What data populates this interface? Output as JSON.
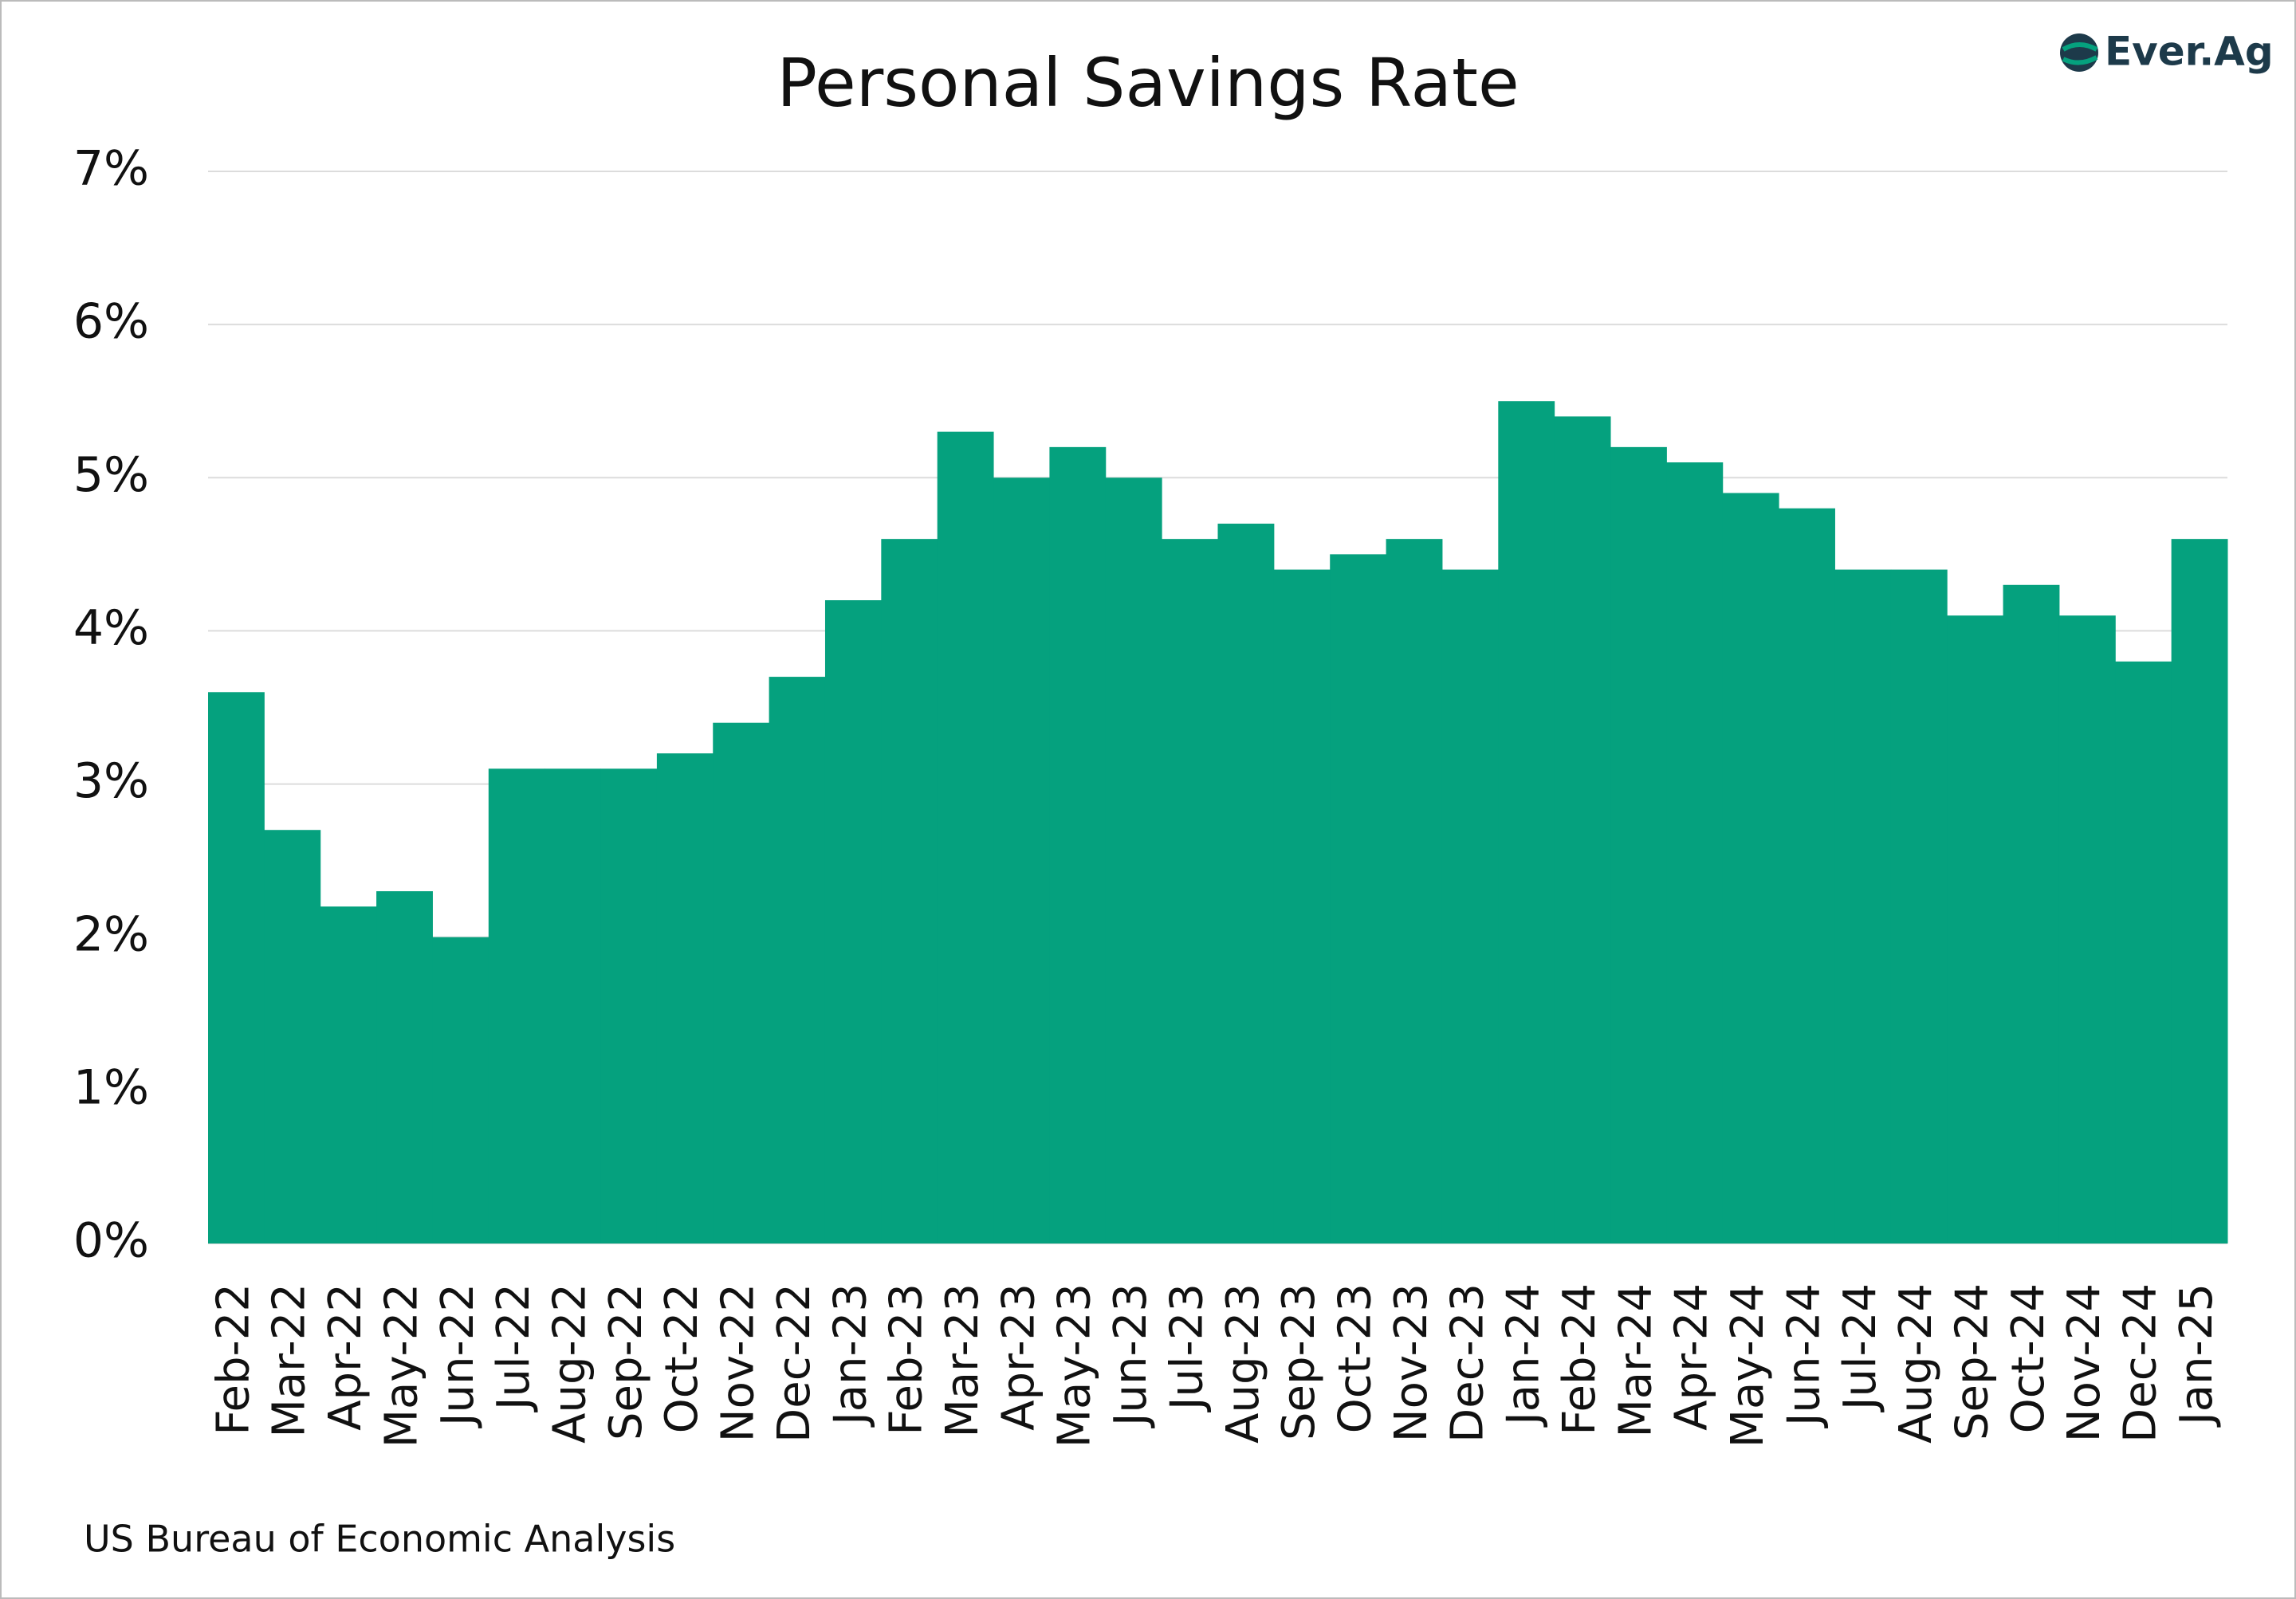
{
  "chart_data": {
    "type": "bar",
    "title": "Personal Savings Rate",
    "source": "US Bureau of Economic Analysis",
    "logo": "Ever.Ag",
    "categories": [
      "Feb-22",
      "Mar-22",
      "Apr-22",
      "May-22",
      "Jun-22",
      "Jul-22",
      "Aug-22",
      "Sep-22",
      "Oct-22",
      "Nov-22",
      "Dec-22",
      "Jan-23",
      "Feb-23",
      "Mar-23",
      "Apr-23",
      "May-23",
      "Jun-23",
      "Jul-23",
      "Aug-23",
      "Sep-23",
      "Oct-23",
      "Nov-23",
      "Dec-23",
      "Jan-24",
      "Feb-24",
      "Mar-24",
      "Apr-24",
      "May-24",
      "Jun-24",
      "Jul-24",
      "Aug-24",
      "Sep-24",
      "Oct-24",
      "Nov-24",
      "Dec-24",
      "Jan-25"
    ],
    "values": [
      3.6,
      2.7,
      2.2,
      2.3,
      2.0,
      3.1,
      3.1,
      3.1,
      3.2,
      3.4,
      3.7,
      4.2,
      4.6,
      5.3,
      5.0,
      5.2,
      5.0,
      4.6,
      4.7,
      4.4,
      4.5,
      4.6,
      4.4,
      5.5,
      5.4,
      5.2,
      5.1,
      4.9,
      4.8,
      4.4,
      4.4,
      4.1,
      4.3,
      4.1,
      3.8,
      4.6
    ],
    "color": "#05a17e",
    "ylim": [
      0,
      7
    ],
    "yticks": [
      {
        "value": 0,
        "label": "0%"
      },
      {
        "value": 1,
        "label": "1%"
      },
      {
        "value": 2,
        "label": "2%"
      },
      {
        "value": 3,
        "label": "3%"
      },
      {
        "value": 4,
        "label": "4%"
      },
      {
        "value": 5,
        "label": "5%"
      },
      {
        "value": 6,
        "label": "6%"
      },
      {
        "value": 7,
        "label": "7%"
      }
    ],
    "grid": true
  }
}
